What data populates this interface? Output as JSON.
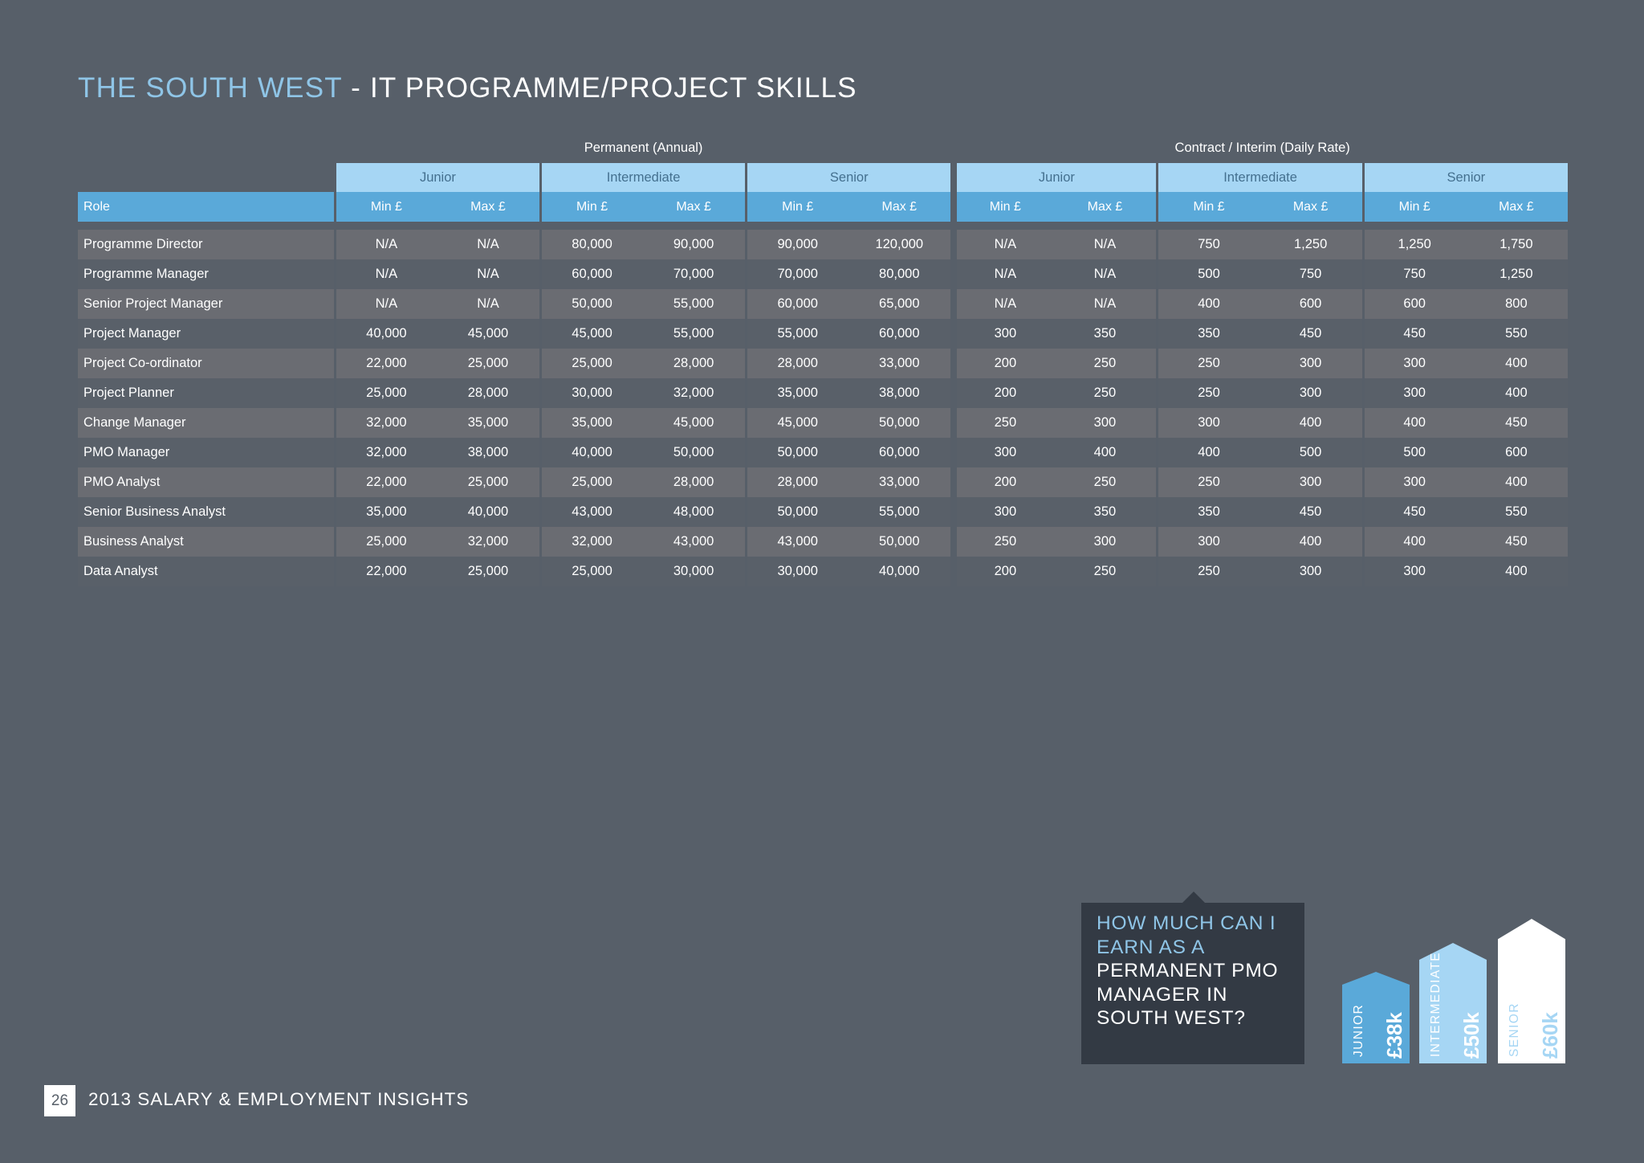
{
  "page": {
    "title_highlight": "THE SOUTH WEST",
    "title_rest": " - IT PROGRAMME/PROJECT SKILLS",
    "page_number": "26",
    "footer": "2013 SALARY & EMPLOYMENT INSIGHTS"
  },
  "table": {
    "groups": [
      "Permanent (Annual)",
      "Contract / Interim (Daily Rate)"
    ],
    "levels": [
      "Junior",
      "Intermediate",
      "Senior",
      "Junior",
      "Intermediate",
      "Senior"
    ],
    "role_header": "Role",
    "min_label": "Min £",
    "max_label": "Max £",
    "rows": [
      [
        "Programme Director",
        "N/A",
        "N/A",
        "80,000",
        "90,000",
        "90,000",
        "120,000",
        "N/A",
        "N/A",
        "750",
        "1,250",
        "1,250",
        "1,750"
      ],
      [
        "Programme Manager",
        "N/A",
        "N/A",
        "60,000",
        "70,000",
        "70,000",
        "80,000",
        "N/A",
        "N/A",
        "500",
        "750",
        "750",
        "1,250"
      ],
      [
        "Senior Project Manager",
        "N/A",
        "N/A",
        "50,000",
        "55,000",
        "60,000",
        "65,000",
        "N/A",
        "N/A",
        "400",
        "600",
        "600",
        "800"
      ],
      [
        "Project Manager",
        "40,000",
        "45,000",
        "45,000",
        "55,000",
        "55,000",
        "60,000",
        "300",
        "350",
        "350",
        "450",
        "450",
        "550"
      ],
      [
        "Project Co-ordinator",
        "22,000",
        "25,000",
        "25,000",
        "28,000",
        "28,000",
        "33,000",
        "200",
        "250",
        "250",
        "300",
        "300",
        "400"
      ],
      [
        "Project Planner",
        "25,000",
        "28,000",
        "30,000",
        "32,000",
        "35,000",
        "38,000",
        "200",
        "250",
        "250",
        "300",
        "300",
        "400"
      ],
      [
        "Change Manager",
        "32,000",
        "35,000",
        "35,000",
        "45,000",
        "45,000",
        "50,000",
        "250",
        "300",
        "300",
        "400",
        "400",
        "450"
      ],
      [
        "PMO Manager",
        "32,000",
        "38,000",
        "40,000",
        "50,000",
        "50,000",
        "60,000",
        "300",
        "400",
        "400",
        "500",
        "500",
        "600"
      ],
      [
        "PMO Analyst",
        "22,000",
        "25,000",
        "25,000",
        "28,000",
        "28,000",
        "33,000",
        "200",
        "250",
        "250",
        "300",
        "300",
        "400"
      ],
      [
        "Senior Business Analyst",
        "35,000",
        "40,000",
        "43,000",
        "48,000",
        "50,000",
        "55,000",
        "300",
        "350",
        "350",
        "450",
        "450",
        "550"
      ],
      [
        "Business Analyst",
        "25,000",
        "32,000",
        "32,000",
        "43,000",
        "43,000",
        "50,000",
        "250",
        "300",
        "300",
        "400",
        "400",
        "450"
      ],
      [
        "Data Analyst",
        "22,000",
        "25,000",
        "25,000",
        "30,000",
        "30,000",
        "40,000",
        "200",
        "250",
        "250",
        "300",
        "300",
        "400"
      ]
    ]
  },
  "callout": {
    "line_highlight": "HOW MUCH CAN I EARN AS A",
    "line_rest": "PERMANENT PMO MANAGER IN SOUTH WEST?"
  },
  "bars": [
    {
      "label": "JUNIOR",
      "value": "£38k",
      "amount_k": 38,
      "color": "#5aa9d9",
      "label_color": "#ffffff",
      "value_color": "#ffffff"
    },
    {
      "label": "INTERMEDIATE",
      "value": "£50k",
      "amount_k": 50,
      "color": "#a6d6f4",
      "label_color": "#ffffff",
      "value_color": "#ffffff"
    },
    {
      "label": "SENIOR",
      "value": "£60k",
      "amount_k": 60,
      "color": "#ffffff",
      "label_color": "#a6d6f4",
      "value_color": "#a6d6f4"
    }
  ]
}
